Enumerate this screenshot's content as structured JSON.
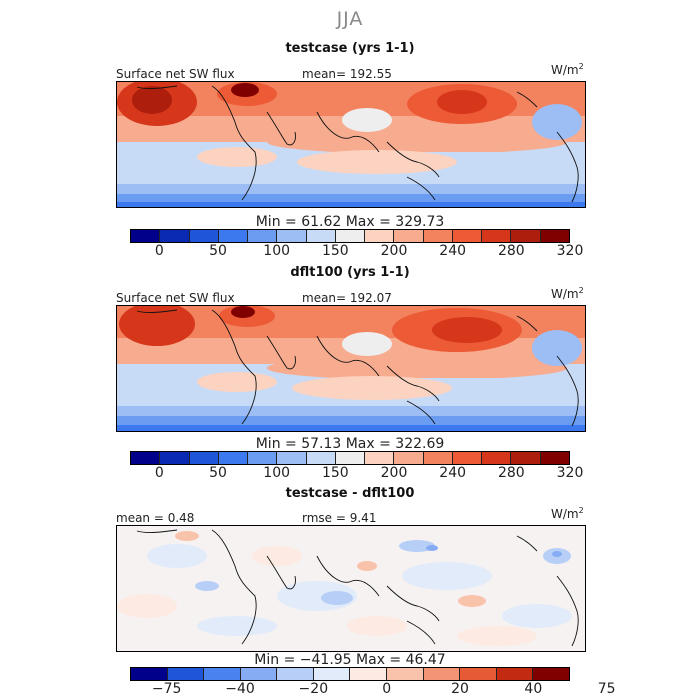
{
  "season": "JJA",
  "panels": [
    {
      "title": "testcase (yrs 1-1)",
      "left_label": "Surface net SW flux",
      "stat_label": "mean= 192.55",
      "units_base": "W/m",
      "units_exp": "2",
      "minmax": "Min =  61.62 Max = 329.73",
      "colorbar_ticks": [
        "0",
        "50",
        "100",
        "150",
        "200",
        "240",
        "280",
        "320"
      ]
    },
    {
      "title": "dflt100 (yrs 1-1)",
      "left_label": "Surface net SW flux",
      "stat_label": "mean= 192.07",
      "units_base": "W/m",
      "units_exp": "2",
      "minmax": "Min =  57.13 Max = 322.69",
      "colorbar_ticks": [
        "0",
        "50",
        "100",
        "150",
        "200",
        "240",
        "280",
        "320"
      ]
    },
    {
      "title": "testcase - dflt100",
      "left_label": "mean =   0.48",
      "stat_label": "rmse =   9.41",
      "units_base": "W/m",
      "units_exp": "2",
      "minmax": "Min = −41.95 Max =  46.47",
      "colorbar_ticks": [
        "−75",
        "−40",
        "−20",
        "0",
        "20",
        "40",
        "75"
      ]
    }
  ],
  "colors": {
    "flux_scale": [
      "#00008b",
      "#0a2ab4",
      "#1f55d9",
      "#3c78ee",
      "#6a9cf2",
      "#9cbef5",
      "#c7dbf7",
      "#eeeeee",
      "#fbd3c0",
      "#f7ab8f",
      "#f3835f",
      "#ec5a36",
      "#d6361a",
      "#ad1e0c",
      "#800000"
    ],
    "diff_scale": [
      "#00008b",
      "#1f55d9",
      "#4a83f0",
      "#86adf4",
      "#b7cff7",
      "#e1ebfa",
      "#fdeae2",
      "#f9c2aa",
      "#f39574",
      "#e65a35",
      "#c22a12",
      "#800000"
    ]
  }
}
